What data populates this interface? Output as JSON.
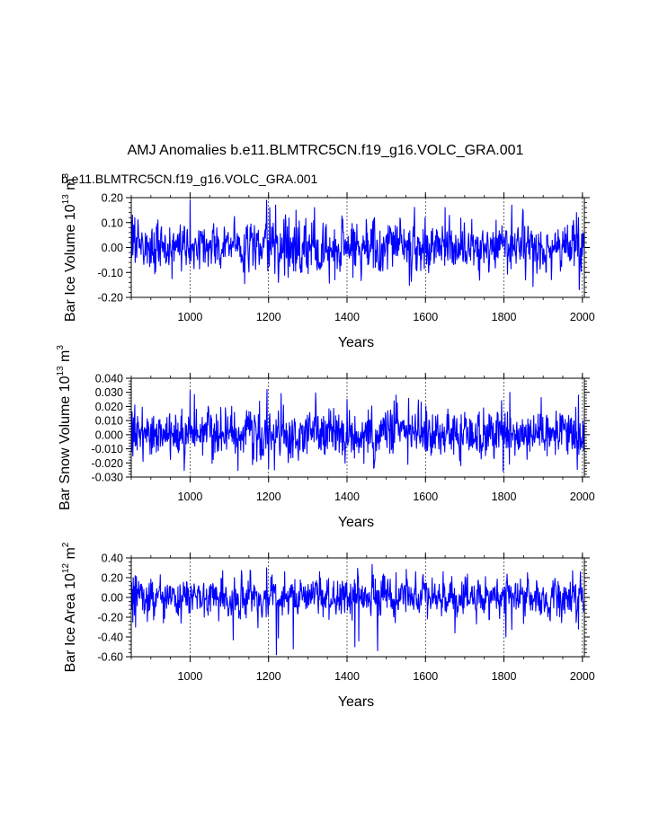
{
  "page": {
    "title": "AMJ Anomalies b.e11.BLMTRC5CN.f19_g16.VOLC_GRA.001",
    "subtitle": "b.e11.BLMTRC5CN.f19_g16.VOLC_GRA.001"
  },
  "colors": {
    "series": "#0000ff",
    "subtitle": "#0000ff",
    "axes": "#000000",
    "grid": "#000000",
    "background": "#ffffff"
  },
  "chart_data": [
    {
      "type": "line",
      "ylabel_parts": {
        "pre": "Bar Ice Volume 10",
        "sup1": "13",
        "mid": " m",
        "sup2": "3"
      },
      "xlabel": "Years",
      "xlim": [
        850,
        2005
      ],
      "ylim": [
        -0.2,
        0.2
      ],
      "x_ticks": [
        1000,
        1200,
        1400,
        1600,
        1800,
        2000
      ],
      "x_tick_labels": [
        "1000",
        "1200",
        "1400",
        "1600",
        "1800",
        "2000"
      ],
      "y_ticks": [
        -0.2,
        -0.1,
        0.0,
        0.1,
        0.2
      ],
      "y_tick_labels": [
        "-0.20",
        "-0.10",
        "0.00",
        "0.10",
        "0.20"
      ],
      "y_minor_step": 0.02,
      "x_minor_step": 50,
      "grid_x": [
        1000,
        1200,
        1400,
        1600,
        1800,
        2000
      ],
      "series": [
        {
          "name": "Bar Ice Volume",
          "x_start": 850,
          "x_end": 2005,
          "seed": 17,
          "sigma": 0.05,
          "ar": 0.25,
          "anchors": [
            [
              1000,
              0.19
            ],
            [
              1195,
              0.19
            ],
            [
              1218,
              0.17
            ],
            [
              1225,
              -0.14
            ],
            [
              1250,
              -0.12
            ],
            [
              1415,
              -0.12
            ],
            [
              1650,
              0.16
            ],
            [
              1820,
              0.17
            ],
            [
              1985,
              0.14
            ],
            [
              1855,
              -0.13
            ],
            [
              1990,
              0.12
            ],
            [
              1203,
              0.16
            ],
            [
              1270,
              0.15
            ],
            [
              1317,
              0.16
            ]
          ],
          "values": [
            0.05,
            -0.04,
            0.08,
            0.13,
            -0.03,
            0.01,
            0.09,
            0.06,
            0.02,
            0.12,
            -0.06,
            -0.02,
            0.0,
            0.04
          ]
        }
      ]
    },
    {
      "type": "line",
      "ylabel_parts": {
        "pre": "Bar Snow Volume 10",
        "sup1": "13",
        "mid": " m",
        "sup2": "3"
      },
      "xlabel": "Years",
      "xlim": [
        850,
        2005
      ],
      "ylim": [
        -0.03,
        0.04
      ],
      "x_ticks": [
        1000,
        1200,
        1400,
        1600,
        1800,
        2000
      ],
      "x_tick_labels": [
        "1000",
        "1200",
        "1400",
        "1600",
        "1800",
        "2000"
      ],
      "y_ticks": [
        -0.03,
        -0.02,
        -0.01,
        0.0,
        0.01,
        0.02,
        0.03,
        0.04
      ],
      "y_tick_labels": [
        "-0.030",
        "-0.020",
        "-0.010",
        "0.000",
        "0.010",
        "0.020",
        "0.030",
        "0.040"
      ],
      "y_minor_step": 0.002,
      "x_minor_step": 50,
      "grid_x": [
        1000,
        1200,
        1400,
        1600,
        1800,
        2000
      ],
      "series": [
        {
          "name": "Bar Snow Volume",
          "x_start": 850,
          "x_end": 2005,
          "seed": 43,
          "sigma": 0.0085,
          "ar": 0.15,
          "anchors": [
            [
              1000,
              0.031
            ],
            [
              1196,
              0.032
            ],
            [
              1200,
              -0.024
            ],
            [
              1215,
              -0.025
            ],
            [
              1525,
              0.028
            ],
            [
              1798,
              -0.026
            ],
            [
              1815,
              0.03
            ],
            [
              1990,
              0.028
            ],
            [
              1690,
              -0.022
            ],
            [
              1555,
              -0.021
            ],
            [
              1400,
              0.025
            ]
          ],
          "values": [
            0.004,
            -0.012,
            0.016,
            0.008,
            -0.015,
            0.002,
            0.012,
            -0.005,
            0.01,
            0.021,
            -0.008,
            0.001
          ]
        }
      ]
    },
    {
      "type": "line",
      "ylabel_parts": {
        "pre": "Bar Ice Area 10",
        "sup1": "12",
        "mid": " m",
        "sup2": "2"
      },
      "xlabel": "Years",
      "xlim": [
        850,
        2005
      ],
      "ylim": [
        -0.6,
        0.4
      ],
      "x_ticks": [
        1000,
        1200,
        1400,
        1600,
        1800,
        2000
      ],
      "x_tick_labels": [
        "1000",
        "1200",
        "1400",
        "1600",
        "1800",
        "2000"
      ],
      "y_ticks": [
        -0.6,
        -0.4,
        -0.2,
        0.0,
        0.2,
        0.4
      ],
      "y_tick_labels": [
        "-0.60",
        "-0.40",
        "-0.20",
        "0.00",
        "0.20",
        "0.40"
      ],
      "y_minor_step": 0.04,
      "x_minor_step": 50,
      "grid_x": [
        1000,
        1200,
        1400,
        1600,
        1800,
        2000
      ],
      "series": [
        {
          "name": "Bar Ice Area",
          "x_start": 850,
          "x_end": 2005,
          "seed": 91,
          "sigma": 0.1,
          "ar": 0.3,
          "anchors": [
            [
              1195,
              0.3
            ],
            [
              1220,
              -0.58
            ],
            [
              1225,
              -0.41
            ],
            [
              1263,
              -0.52
            ],
            [
              1420,
              -0.5
            ],
            [
              1430,
              -0.44
            ],
            [
              1478,
              -0.54
            ],
            [
              1805,
              -0.4
            ],
            [
              1675,
              -0.36
            ],
            [
              1990,
              -0.32
            ],
            [
              1083,
              0.27
            ],
            [
              1330,
              0.26
            ],
            [
              1525,
              0.25
            ],
            [
              1645,
              0.26
            ],
            [
              1860,
              0.25
            ],
            [
              1110,
              -0.43
            ]
          ],
          "values": [
            0.02,
            0.15,
            -0.12,
            0.08,
            -0.25,
            0.2,
            -0.06,
            0.11,
            -0.18,
            0.05,
            0.22,
            -0.3
          ]
        }
      ]
    }
  ]
}
